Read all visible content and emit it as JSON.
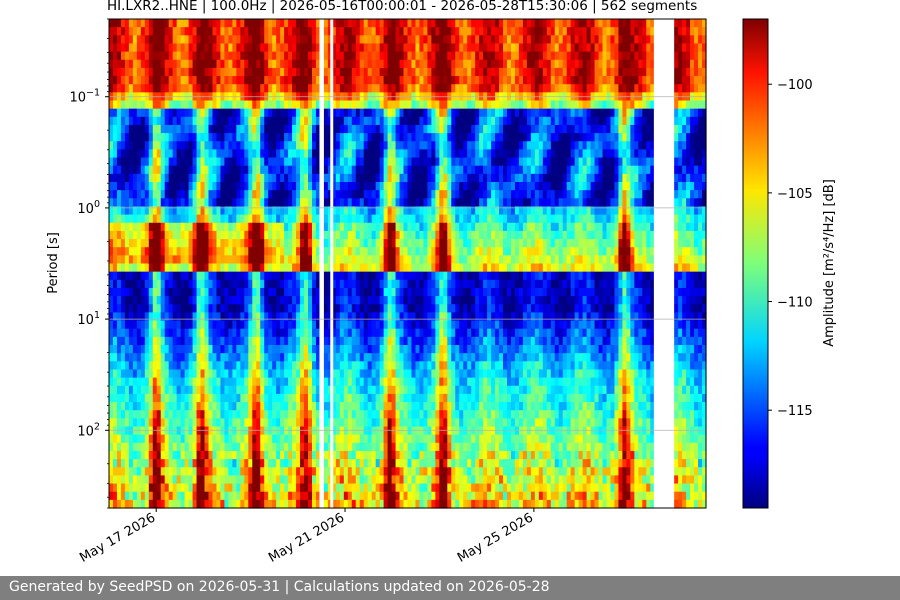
{
  "chart_data": {
    "type": "heatmap",
    "title": "HI.LXR2..HNE | 100.0Hz | 2026-05-16T00:00:01 - 2026-05-28T15:30:06 | 562 segments",
    "ylabel": "Period [s]",
    "colorbar_label": "Amplitude [m²/s⁴/Hz] [dB]",
    "xlim": [
      "2026-05-16T00:00:01",
      "2026-05-28T15:30:06"
    ],
    "x_ticks": [
      {
        "date": "2026-05-17",
        "label": "May 17 2026"
      },
      {
        "date": "2026-05-21",
        "label": "May 21 2026"
      },
      {
        "date": "2026-05-25",
        "label": "May 25 2026"
      }
    ],
    "yscale": "log",
    "y_inverted": true,
    "ylim": [
      0.02,
      500
    ],
    "y_ticks": [
      {
        "value": 0.1,
        "base": "10",
        "exp": "−1"
      },
      {
        "value": 1,
        "base": "10",
        "exp": "0"
      },
      {
        "value": 10,
        "base": "10",
        "exp": "1"
      },
      {
        "value": 100,
        "base": "10",
        "exp": "2"
      }
    ],
    "grid": true,
    "colormap": "jet",
    "color_range": [
      -119.5,
      -97.0
    ],
    "colorbar_ticks": [
      {
        "value": -100,
        "label": "−100"
      },
      {
        "value": -105,
        "label": "−105"
      },
      {
        "value": -110,
        "label": "−110"
      },
      {
        "value": -115,
        "label": "−115"
      }
    ],
    "segments": 562,
    "data_gaps": [
      {
        "start": "2026-05-20T11:00:00",
        "end": "2026-05-20T12:30:00"
      },
      {
        "start": "2026-05-20T16:30:00",
        "end": "2026-05-20T18:00:00"
      },
      {
        "start": "2026-05-27T13:00:00",
        "end": "2026-05-27T22:30:00"
      }
    ],
    "microseism_peak_period_s": 2.3,
    "low_amplitude_band_period_s": [
      4,
      8
    ],
    "high_amplitude_events": [
      "2026-05-17T00:00:00",
      "2026-05-17T23:00:00",
      "2026-05-19T03:00:00",
      "2026-05-20T04:00:00",
      "2026-05-21T23:00:00",
      "2026-05-23T02:00:00",
      "2026-05-26T22:00:00"
    ]
  },
  "footer": {
    "text": "Generated by SeedPSD on 2026-05-31 | Calculations updated on 2026-05-28"
  }
}
